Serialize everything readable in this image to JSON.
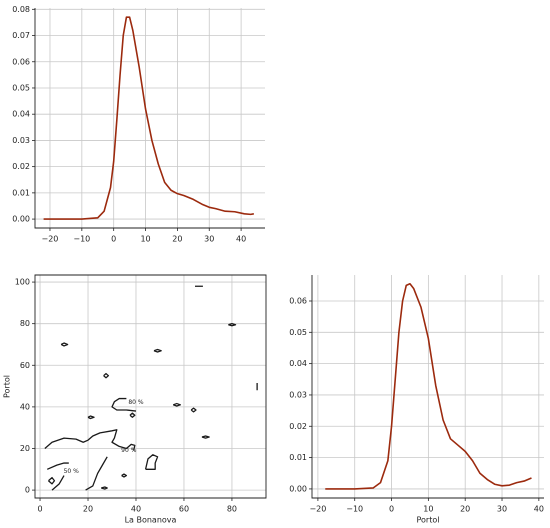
{
  "chart_data": [
    {
      "type": "line",
      "color": "#9c2a0e",
      "grid": true,
      "x": [
        -22,
        -10,
        -5,
        -3,
        -1,
        0,
        1,
        2,
        3,
        4,
        5,
        6,
        8,
        10,
        12,
        14,
        16,
        18,
        20,
        22,
        25,
        28,
        30,
        32,
        35,
        38,
        41,
        43,
        44
      ],
      "values": [
        0,
        0,
        0.0005,
        0.003,
        0.012,
        0.022,
        0.038,
        0.055,
        0.07,
        0.077,
        0.077,
        0.072,
        0.058,
        0.042,
        0.03,
        0.021,
        0.014,
        0.011,
        0.0097,
        0.009,
        0.0075,
        0.0055,
        0.0045,
        0.004,
        0.003,
        0.0028,
        0.002,
        0.0018,
        0.002
      ],
      "xlim": [
        -24.7,
        47.5
      ],
      "ylim": [
        -0.0034,
        0.0805
      ],
      "xticks": [
        {
          "value": -20,
          "label": "−20"
        },
        {
          "value": -10,
          "label": "−10"
        },
        0,
        10,
        20,
        30,
        40
      ],
      "yticks": [
        {
          "value": 0,
          "label": "0.00"
        },
        {
          "value": 0.01,
          "label": "0.01"
        },
        {
          "value": 0.02,
          "label": "0.02"
        },
        {
          "value": 0.03,
          "label": "0.03"
        },
        {
          "value": 0.04,
          "label": "0.04"
        },
        {
          "value": 0.05,
          "label": "0.05"
        },
        {
          "value": 0.06,
          "label": "0.06"
        },
        {
          "value": 0.07,
          "label": "0.07"
        },
        {
          "value": 0.08,
          "label": "0.08"
        }
      ]
    },
    {
      "type": "contour",
      "color": "#1a1a1a",
      "grid": true,
      "x_label": "La Bonanova",
      "y_label": "Portol",
      "x": [
        64.6,
        67.9,
        null,
        78.5,
        80,
        81.5,
        80,
        78.5,
        null,
        8.8,
        10,
        11.5,
        10,
        8.8,
        null,
        47.5,
        49,
        50.5,
        49,
        47.5,
        null,
        26.5,
        27.5,
        28.5,
        27.5,
        26.5,
        null,
        55.5,
        57,
        58.5,
        57,
        55.5,
        null,
        63,
        64,
        65,
        64,
        63,
        null,
        67.5,
        69,
        70.5,
        69,
        67.5,
        null,
        37.5,
        38.5,
        39.5,
        38.5,
        37.5,
        null,
        20,
        21,
        22.5,
        21,
        20,
        null,
        90.5,
        90.5,
        null,
        34,
        35,
        36,
        35,
        34,
        null,
        3.5,
        5,
        6,
        5,
        3.5,
        null,
        25.5,
        27,
        28,
        27,
        25.5,
        null,
        2,
        5,
        10,
        15,
        18,
        20,
        22,
        25,
        30,
        32,
        31,
        30,
        33,
        36,
        38,
        39.5,
        39,
        null,
        40,
        36,
        32,
        30,
        31,
        33,
        36,
        null,
        3,
        7,
        10,
        12,
        null,
        5,
        8,
        10,
        null,
        19,
        22,
        24,
        26,
        28,
        null,
        44,
        48,
        48,
        49,
        47,
        45,
        44
      ],
      "values": [
        98,
        98,
        null,
        79.5,
        79,
        79.5,
        80,
        79.5,
        null,
        70,
        69.3,
        70,
        70.7,
        70,
        null,
        67,
        66.4,
        67,
        67.6,
        67,
        null,
        55,
        54,
        55,
        56,
        55,
        null,
        41,
        40.4,
        41,
        41.6,
        41,
        null,
        38.5,
        37.6,
        38.5,
        39.4,
        38.5,
        null,
        25.5,
        25,
        25.5,
        26,
        25.5,
        null,
        36,
        35,
        36,
        37,
        36,
        null,
        35,
        34.4,
        35,
        35.6,
        35,
        null,
        48,
        51.5,
        null,
        7,
        6.3,
        7,
        7.7,
        7,
        null,
        4.5,
        3,
        4.5,
        6,
        4.5,
        null,
        1,
        0.5,
        1,
        1.5,
        1,
        null,
        20,
        23,
        25,
        24.5,
        23,
        24,
        26,
        27.5,
        28.5,
        29,
        25,
        23,
        21,
        20,
        22,
        21.5,
        19,
        null,
        38,
        38.5,
        38.5,
        40,
        42.5,
        44,
        44,
        null,
        10,
        12,
        13,
        13,
        null,
        0,
        3,
        7,
        null,
        0,
        2,
        8,
        12,
        16,
        null,
        10,
        10,
        13,
        16,
        17,
        15,
        10
      ],
      "annotations": [
        {
          "text": "90 %",
          "x": 37,
          "y": 19
        },
        {
          "text": "50 %",
          "x": 13,
          "y": 9
        },
        {
          "text": "80 %",
          "x": 40,
          "y": 42
        }
      ],
      "xlim": [
        -2.1,
        94.2
      ],
      "ylim": [
        -3.8,
        103.4
      ],
      "xticks": [
        0,
        20,
        40,
        60,
        80
      ],
      "yticks": [
        0,
        20,
        40,
        60,
        80,
        100
      ]
    },
    {
      "type": "line",
      "color": "#9c2a0e",
      "grid": true,
      "x_label": "Portol",
      "x": [
        -18,
        -10,
        -5,
        -3,
        -1,
        0,
        1,
        2,
        3,
        4,
        5,
        6,
        8,
        10,
        12,
        14,
        16,
        18,
        20,
        22,
        24,
        26,
        28,
        30,
        32,
        34,
        36,
        38
      ],
      "values": [
        0,
        0,
        0.0003,
        0.002,
        0.009,
        0.02,
        0.035,
        0.05,
        0.06,
        0.065,
        0.0655,
        0.064,
        0.058,
        0.048,
        0.033,
        0.022,
        0.016,
        0.014,
        0.012,
        0.009,
        0.005,
        0.003,
        0.0015,
        0.001,
        0.0012,
        0.002,
        0.0025,
        0.0035
      ],
      "xlim": [
        -21.6,
        41.4
      ],
      "ylim": [
        -0.0029,
        0.0683
      ],
      "xticks": [
        {
          "value": -20,
          "label": "−20"
        },
        {
          "value": -10,
          "label": "−10"
        },
        0,
        10,
        20,
        30,
        40
      ],
      "yticks": [
        {
          "value": 0,
          "label": "0.00"
        },
        {
          "value": 0.01,
          "label": "0.01"
        },
        {
          "value": 0.02,
          "label": "0.02"
        },
        {
          "value": 0.03,
          "label": "0.03"
        },
        {
          "value": 0.04,
          "label": "0.04"
        },
        {
          "value": 0.05,
          "label": "0.05"
        },
        {
          "value": 0.06,
          "label": "0.06"
        }
      ]
    }
  ]
}
